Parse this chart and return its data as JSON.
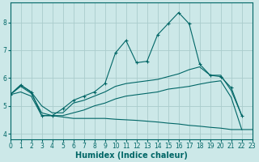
{
  "title": "",
  "xlabel": "Humidex (Indice chaleur)",
  "background_color": "#cce8e8",
  "grid_color": "#aacccc",
  "line_color": "#006666",
  "x": [
    0,
    1,
    2,
    3,
    4,
    5,
    6,
    7,
    8,
    9,
    10,
    11,
    12,
    13,
    14,
    15,
    16,
    17,
    18,
    19,
    20,
    21,
    22,
    23
  ],
  "line_main": [
    5.4,
    5.75,
    5.5,
    4.65,
    4.65,
    4.9,
    5.2,
    5.35,
    5.5,
    5.8,
    6.9,
    7.35,
    6.55,
    6.6,
    7.55,
    7.95,
    8.35,
    7.95,
    6.5,
    6.1,
    6.05,
    5.65,
    4.65,
    null
  ],
  "line_upper": [
    5.4,
    5.75,
    5.5,
    5.0,
    4.75,
    4.75,
    5.1,
    5.2,
    5.35,
    5.5,
    5.7,
    5.8,
    5.85,
    5.9,
    5.95,
    6.05,
    6.15,
    6.3,
    6.4,
    6.1,
    6.1,
    5.55,
    4.65,
    null
  ],
  "line_mid": [
    5.4,
    5.7,
    5.45,
    4.75,
    4.65,
    4.65,
    4.75,
    4.85,
    5.0,
    5.1,
    5.25,
    5.35,
    5.4,
    5.45,
    5.5,
    5.6,
    5.65,
    5.7,
    5.78,
    5.85,
    5.9,
    5.3,
    4.15,
    null
  ],
  "line_lower": [
    5.4,
    5.5,
    5.35,
    4.65,
    4.65,
    4.6,
    4.55,
    4.55,
    4.55,
    4.55,
    4.52,
    4.5,
    4.48,
    4.45,
    4.42,
    4.38,
    4.35,
    4.3,
    4.27,
    4.23,
    4.2,
    4.15,
    4.15,
    4.15
  ],
  "xlim": [
    0,
    23
  ],
  "ylim": [
    3.8,
    8.7
  ],
  "yticks": [
    4,
    5,
    6,
    7,
    8
  ],
  "xticks": [
    0,
    1,
    2,
    3,
    4,
    5,
    6,
    7,
    8,
    9,
    10,
    11,
    12,
    13,
    14,
    15,
    16,
    17,
    18,
    19,
    20,
    21,
    22,
    23
  ],
  "tick_fontsize": 5.5,
  "xlabel_fontsize": 7
}
